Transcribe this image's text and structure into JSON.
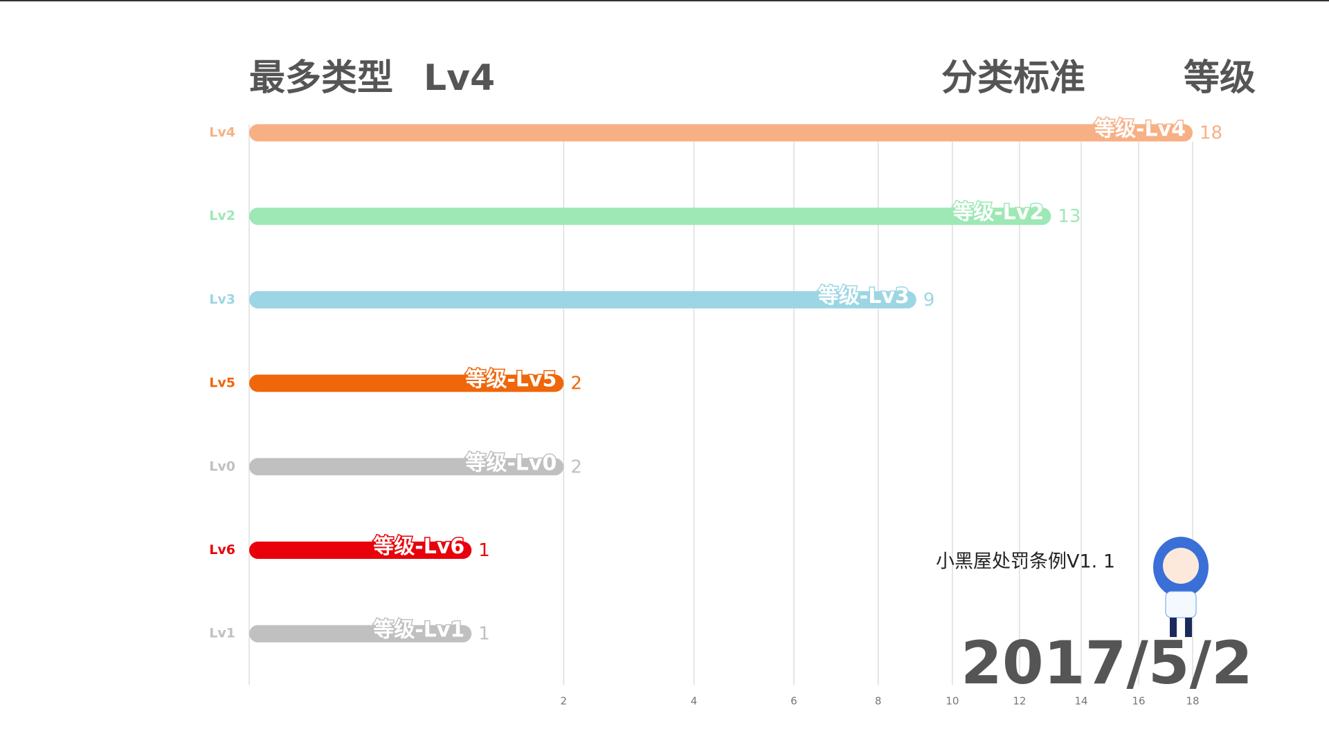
{
  "chart_data": {
    "type": "bar",
    "orientation": "horizontal",
    "title": "最多类型",
    "title_value": "Lv4",
    "subtitle_label": "分类标准",
    "subtitle_value": "等级",
    "date": "2017/5/2",
    "annotation": "小黑屋处罚条例V1. 1",
    "categories": [
      "Lv4",
      "Lv2",
      "Lv3",
      "Lv5",
      "Lv0",
      "Lv6",
      "Lv1"
    ],
    "bar_labels": [
      "等级-Lv4",
      "等级-Lv2",
      "等级-Lv3",
      "等级-Lv5",
      "等级-Lv0",
      "等级-Lv6",
      "等级-Lv1"
    ],
    "values": [
      18,
      13,
      9,
      2,
      2,
      1,
      1
    ],
    "colors": [
      "#f7b084",
      "#9de8b4",
      "#9cd6e4",
      "#f0660a",
      "#c0c0c0",
      "#e8000b",
      "#c0c0c0"
    ],
    "xscale": "sqrt",
    "xlim": [
      0,
      18
    ],
    "xticks": [
      2,
      4,
      6,
      8,
      10,
      12,
      14,
      16,
      18
    ],
    "grid": true
  }
}
